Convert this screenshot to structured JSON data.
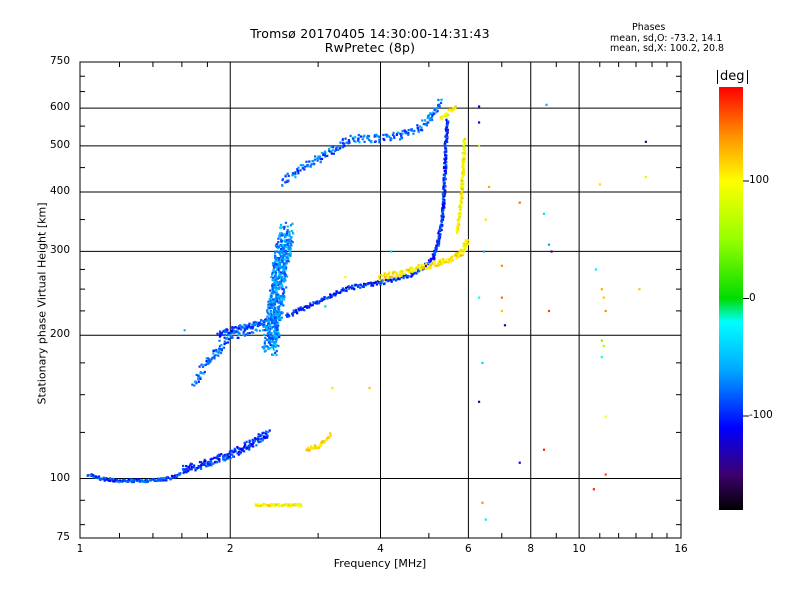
{
  "title": {
    "line1": "Tromsø 20170405 14:30:00-14:31:43",
    "line2": "RwPretec (8p)"
  },
  "phases": {
    "header": "Phases",
    "o_mode": "mean, sd,O: -73.2, 14.1",
    "x_mode": "mean, sd,X: 100.2, 20.8"
  },
  "colorbar": {
    "label": "deg",
    "range": [
      -180,
      180
    ],
    "ticks": [
      "100",
      "0",
      "-100"
    ],
    "tick_values": [
      100,
      0,
      -100
    ]
  },
  "chart_data": {
    "type": "scatter",
    "x_scale": "log",
    "y_scale": "log",
    "xlabel": "Frequency [MHz]",
    "ylabel": "Stationary phase Virtual Height [km]",
    "xlim": [
      1,
      16
    ],
    "ylim": [
      75,
      750
    ],
    "x_ticks": [
      "1",
      "2",
      "4",
      "6",
      "8",
      "10",
      "16"
    ],
    "x_tick_values": [
      1,
      2,
      4,
      6,
      8,
      10,
      16
    ],
    "y_ticks": [
      "750",
      "600",
      "500",
      "400",
      "300",
      "200",
      "100",
      "75"
    ],
    "y_tick_values": [
      750,
      600,
      500,
      400,
      300,
      200,
      100,
      75
    ],
    "grid": true,
    "traces": [
      {
        "x": [
          1.04,
          1.1,
          1.2,
          1.3,
          1.4,
          1.5,
          1.55,
          1.6
        ],
        "y": [
          102,
          100,
          99,
          99,
          99,
          100,
          101,
          103
        ],
        "phase": -90,
        "spread": 1.5,
        "n": 4
      },
      {
        "x": [
          1.6,
          1.7,
          1.8,
          1.9,
          2.0,
          2.1,
          2.2,
          2.3,
          2.4
        ],
        "y": [
          104,
          106,
          108,
          110,
          112,
          115,
          118,
          122,
          125
        ],
        "phase": -95,
        "spread": 4,
        "n": 5
      },
      {
        "x": [
          1.7,
          1.8,
          1.9,
          2.0,
          2.2,
          2.4
        ],
        "y": [
          160,
          175,
          188,
          200,
          205,
          212
        ],
        "phase": -80,
        "spread": 5,
        "n": 3
      },
      {
        "x": [
          1.9,
          2.0,
          2.1,
          2.2,
          2.3,
          2.4
        ],
        "y": [
          200,
          205,
          207,
          210,
          213,
          215
        ],
        "phase": -90,
        "spread": 3,
        "n": 4
      },
      {
        "x": [
          2.4,
          2.45,
          2.5,
          2.55,
          2.6
        ],
        "y": [
          190,
          220,
          260,
          300,
          330
        ],
        "phase": -70,
        "spread": 12,
        "n": 14
      },
      {
        "x": [
          2.55,
          2.7,
          2.9,
          3.1,
          3.3,
          3.5,
          3.7,
          4.0,
          4.4,
          4.8,
          5.0,
          5.3
        ],
        "y": [
          420,
          440,
          460,
          480,
          500,
          515,
          520,
          518,
          525,
          545,
          570,
          620
        ],
        "phase": -80,
        "spread": 4,
        "n": 3
      },
      {
        "x": [
          2.6,
          2.8,
          3.0,
          3.2,
          3.4,
          3.7,
          4.0,
          4.3,
          4.6,
          4.9,
          5.1
        ],
        "y": [
          220,
          228,
          235,
          243,
          250,
          255,
          258,
          262,
          268,
          278,
          290
        ],
        "phase": -100,
        "spread": 2,
        "n": 3
      },
      {
        "x": [
          5.1,
          5.2,
          5.3,
          5.35,
          5.38,
          5.4,
          5.45
        ],
        "y": [
          290,
          310,
          340,
          380,
          430,
          500,
          570
        ],
        "phase": -100,
        "spread": 2,
        "n": 4
      },
      {
        "x": [
          4.0,
          4.4,
          4.8,
          5.2,
          5.6,
          5.8,
          6.0
        ],
        "y": [
          265,
          270,
          278,
          283,
          290,
          298,
          320
        ],
        "phase": 105,
        "spread": 3,
        "n": 4
      },
      {
        "x": [
          5.7,
          5.8,
          5.85,
          5.9
        ],
        "y": [
          330,
          380,
          440,
          520
        ],
        "phase": 100,
        "spread": 2,
        "n": 3
      },
      {
        "x": [
          5.3,
          5.5,
          5.7
        ],
        "y": [
          570,
          590,
          610
        ],
        "phase": 100,
        "spread": 2,
        "n": 3
      },
      {
        "x": [
          2.85,
          3.0,
          3.1,
          3.2
        ],
        "y": [
          115,
          117,
          120,
          125
        ],
        "phase": 110,
        "spread": 2,
        "n": 3
      },
      {
        "x": [
          2.25,
          2.35,
          2.45,
          2.8
        ],
        "y": [
          88,
          88,
          88,
          88
        ],
        "phase": 100,
        "spread": 1,
        "n": 3
      }
    ],
    "scatter_points": [
      {
        "x": 6.3,
        "y": 605,
        "phase": -120
      },
      {
        "x": 6.3,
        "y": 560,
        "phase": -110
      },
      {
        "x": 6.3,
        "y": 500,
        "phase": 70
      },
      {
        "x": 6.6,
        "y": 410,
        "phase": 130
      },
      {
        "x": 6.5,
        "y": 350,
        "phase": 110
      },
      {
        "x": 6.45,
        "y": 300,
        "phase": -60
      },
      {
        "x": 6.3,
        "y": 240,
        "phase": -20
      },
      {
        "x": 7.0,
        "y": 280,
        "phase": 140
      },
      {
        "x": 7.0,
        "y": 240,
        "phase": 150
      },
      {
        "x": 7.0,
        "y": 225,
        "phase": 120
      },
      {
        "x": 7.1,
        "y": 210,
        "phase": -130
      },
      {
        "x": 6.4,
        "y": 175,
        "phase": -40
      },
      {
        "x": 6.3,
        "y": 145,
        "phase": -140
      },
      {
        "x": 7.6,
        "y": 108,
        "phase": -120
      },
      {
        "x": 6.4,
        "y": 89,
        "phase": 140
      },
      {
        "x": 6.5,
        "y": 82,
        "phase": -30
      },
      {
        "x": 7.6,
        "y": 380,
        "phase": 150
      },
      {
        "x": 8.6,
        "y": 610,
        "phase": -60
      },
      {
        "x": 8.5,
        "y": 360,
        "phase": -40
      },
      {
        "x": 8.7,
        "y": 310,
        "phase": -60
      },
      {
        "x": 8.8,
        "y": 300,
        "phase": -150
      },
      {
        "x": 8.7,
        "y": 225,
        "phase": 160
      },
      {
        "x": 8.5,
        "y": 115,
        "phase": 170
      },
      {
        "x": 11.0,
        "y": 415,
        "phase": 115
      },
      {
        "x": 10.8,
        "y": 275,
        "phase": -30
      },
      {
        "x": 11.1,
        "y": 250,
        "phase": 130
      },
      {
        "x": 11.2,
        "y": 240,
        "phase": 120
      },
      {
        "x": 11.3,
        "y": 225,
        "phase": 140
      },
      {
        "x": 11.1,
        "y": 195,
        "phase": 40
      },
      {
        "x": 11.2,
        "y": 190,
        "phase": 60
      },
      {
        "x": 11.1,
        "y": 180,
        "phase": -20
      },
      {
        "x": 11.3,
        "y": 135,
        "phase": 100
      },
      {
        "x": 11.3,
        "y": 102,
        "phase": 160
      },
      {
        "x": 10.7,
        "y": 95,
        "phase": 170
      },
      {
        "x": 13.6,
        "y": 510,
        "phase": -140
      },
      {
        "x": 13.6,
        "y": 430,
        "phase": 80
      },
      {
        "x": 13.2,
        "y": 250,
        "phase": 120
      },
      {
        "x": 3.2,
        "y": 155,
        "phase": 110
      },
      {
        "x": 3.8,
        "y": 155,
        "phase": 120
      },
      {
        "x": 3.1,
        "y": 230,
        "phase": -10
      },
      {
        "x": 3.4,
        "y": 265,
        "phase": 90
      },
      {
        "x": 4.2,
        "y": 300,
        "phase": -40
      },
      {
        "x": 1.62,
        "y": 205,
        "phase": -50
      }
    ]
  }
}
